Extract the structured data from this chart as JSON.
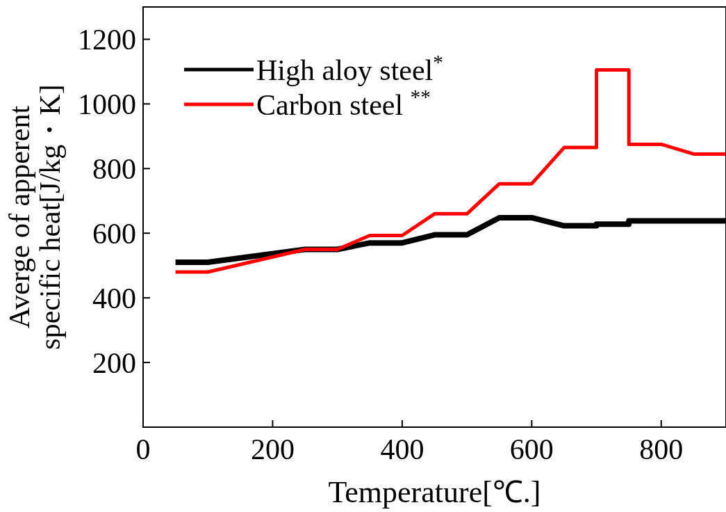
{
  "chart_data": {
    "type": "line",
    "xlabel": "Temperature[℃.]",
    "ylabel": "Averge of apperent\nspecific heat[J/kg・K]",
    "xlim": [
      0,
      900
    ],
    "xticks": [
      0,
      200,
      400,
      600,
      800
    ],
    "ylim": [
      0,
      1300
    ],
    "yticks": [
      200,
      400,
      600,
      800,
      1000,
      1200
    ],
    "legend": "top left",
    "grid": false,
    "marker": "none",
    "line_style": "solid",
    "series": [
      {
        "name": "High aloy steel$^{*}$",
        "color": "#000000",
        "x": [
          50,
          100,
          250,
          300,
          350,
          400,
          450,
          500,
          550,
          600,
          650,
          700,
          700,
          750,
          750,
          900
        ],
        "values": [
          510,
          510,
          550,
          550,
          570,
          570,
          595,
          595,
          648,
          648,
          623,
          623,
          628,
          628,
          638,
          638
        ]
      },
      {
        "name": "Carbon steel $^{**}$",
        "color": "#ff0000",
        "x": [
          50,
          100,
          250,
          300,
          350,
          400,
          450,
          500,
          550,
          600,
          650,
          700,
          700,
          750,
          750,
          800,
          850,
          900
        ],
        "values": [
          480,
          480,
          550,
          550,
          593,
          593,
          660,
          660,
          753,
          753,
          865,
          865,
          1105,
          1105,
          875,
          875,
          845,
          845
        ]
      }
    ]
  }
}
